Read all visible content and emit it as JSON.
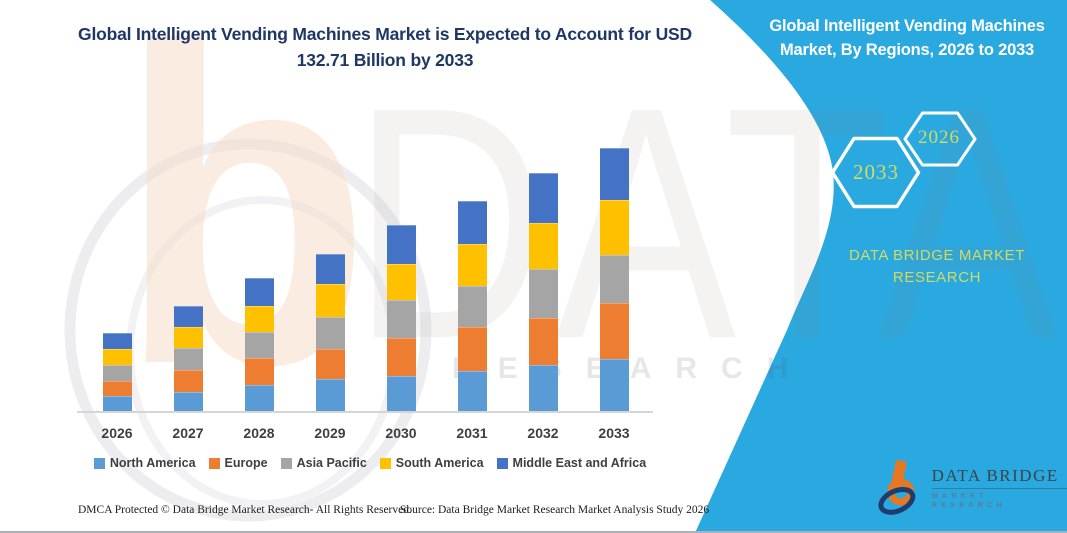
{
  "main_title": {
    "line1": "Global Intelligent Vending Machines Market is Expected to Account for USD",
    "line2": "132.71 Billion by 2033"
  },
  "side_panel": {
    "title_line1": "Global Intelligent Vending Machines",
    "title_line2": "Market, By Regions, 2026 to 2033",
    "hexagons": [
      {
        "label": "2033"
      },
      {
        "label": "2026"
      }
    ],
    "brand_line1": "DATA BRIDGE MARKET",
    "brand_line2": "RESEARCH"
  },
  "watermark": {
    "letter": "b",
    "big_text": "DATA BRI",
    "row_text": "RESEARCH"
  },
  "chart_data": {
    "type": "bar",
    "stacked": true,
    "title": "Global Intelligent Vending Machines Market, By Regions, 2026 to 2033",
    "unit": "USD Billion",
    "xlabel": "",
    "ylabel": "",
    "gridlines": false,
    "y_axis_visible": false,
    "legend_position": "bottom",
    "categories": [
      "2026",
      "2027",
      "2028",
      "2029",
      "2030",
      "2031",
      "2032",
      "2033"
    ],
    "series": [
      {
        "name": "North America",
        "color": "#5B9BD5",
        "values": [
          8.2,
          10.1,
          13.7,
          16.6,
          18.1,
          20.6,
          23.5,
          26.8
        ]
      },
      {
        "name": "Europe",
        "color": "#ED7D31",
        "values": [
          7.6,
          10.9,
          13.6,
          15.1,
          19.1,
          22.1,
          24.0,
          28.2
        ]
      },
      {
        "name": "Asia Pacific",
        "color": "#A5A5A5",
        "values": [
          7.7,
          11.2,
          12.9,
          16.2,
          18.9,
          20.6,
          24.6,
          24.1
        ]
      },
      {
        "name": "South America",
        "color": "#FFC000",
        "values": [
          8.2,
          10.5,
          13.1,
          16.7,
          18.4,
          21.3,
          23.1,
          27.3
        ]
      },
      {
        "name": "Middle East and Africa",
        "color": "#4472C4",
        "values": [
          8.0,
          10.4,
          14.1,
          14.8,
          19.6,
          21.5,
          24.9,
          26.3
        ]
      }
    ],
    "totals_estimated": [
      39.7,
      53.1,
      67.4,
      79.4,
      94.1,
      106.1,
      120.1,
      132.71
    ]
  },
  "footer": {
    "left": "DMCA Protected © Data Bridge Market Research-  All Rights Reserved.",
    "source": "Source: Data Bridge Market Research  Market Analysis Study 2026"
  },
  "logo": {
    "brand": "DATA BRIDGE",
    "tagline": "MARKET RESEARCH"
  },
  "colors": {
    "panel_bg": "#2AA8E0",
    "title_text": "#1E3765",
    "panel_accent_text": "#CFDC62",
    "axis_text": "#3F3F3F",
    "watermark_peach": "#F8DDCB"
  }
}
